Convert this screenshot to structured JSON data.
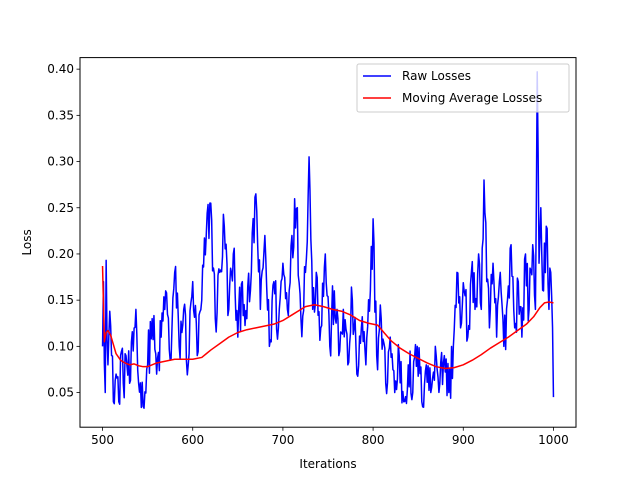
{
  "chart_data": {
    "type": "line",
    "title": "",
    "xlabel": "Iterations",
    "ylabel": "Loss",
    "xlim": [
      475,
      1025
    ],
    "ylim": [
      0.0125,
      0.4125
    ],
    "xticks": [
      500,
      600,
      700,
      800,
      900,
      1000
    ],
    "yticks": [
      0.05,
      0.1,
      0.15,
      0.2,
      0.25,
      0.3,
      0.35,
      0.4
    ],
    "xtick_labels": [
      "500",
      "600",
      "700",
      "800",
      "900",
      "1000"
    ],
    "ytick_labels": [
      "0.05",
      "0.10",
      "0.15",
      "0.20",
      "0.25",
      "0.30",
      "0.35",
      "0.40"
    ],
    "grid": false,
    "legend_position": "upper-right",
    "series": [
      {
        "name": "Raw Losses",
        "color": "#0000ff",
        "style": "solid",
        "raw_seed": 12345,
        "anchors": [
          [
            500,
            0.1
          ],
          [
            501,
            0.17
          ],
          [
            503,
            0.05
          ],
          [
            504,
            0.193
          ],
          [
            506,
            0.08
          ],
          [
            508,
            0.138
          ],
          [
            510,
            0.09
          ],
          [
            512,
            0.04
          ],
          [
            515,
            0.07
          ],
          [
            518,
            0.04
          ],
          [
            520,
            0.09
          ],
          [
            523,
            0.06
          ],
          [
            526,
            0.09
          ],
          [
            530,
            0.06
          ],
          [
            534,
            0.095
          ],
          [
            537,
            0.14
          ],
          [
            540,
            0.06
          ],
          [
            545,
            0.035
          ],
          [
            550,
            0.08
          ],
          [
            555,
            0.13
          ],
          [
            560,
            0.07
          ],
          [
            565,
            0.11
          ],
          [
            570,
            0.16
          ],
          [
            575,
            0.085
          ],
          [
            580,
            0.18
          ],
          [
            585,
            0.1
          ],
          [
            590,
            0.14
          ],
          [
            595,
            0.08
          ],
          [
            600,
            0.17
          ],
          [
            605,
            0.09
          ],
          [
            610,
            0.15
          ],
          [
            615,
            0.22
          ],
          [
            620,
            0.255
          ],
          [
            625,
            0.13
          ],
          [
            630,
            0.18
          ],
          [
            635,
            0.23
          ],
          [
            640,
            0.14
          ],
          [
            645,
            0.2
          ],
          [
            650,
            0.11
          ],
          [
            655,
            0.17
          ],
          [
            660,
            0.13
          ],
          [
            665,
            0.18
          ],
          [
            670,
            0.265
          ],
          [
            675,
            0.14
          ],
          [
            680,
            0.22
          ],
          [
            685,
            0.1
          ],
          [
            690,
            0.17
          ],
          [
            695,
            0.12
          ],
          [
            700,
            0.19
          ],
          [
            705,
            0.14
          ],
          [
            710,
            0.22
          ],
          [
            715,
            0.249
          ],
          [
            720,
            0.13
          ],
          [
            725,
            0.18
          ],
          [
            729,
            0.305
          ],
          [
            733,
            0.14
          ],
          [
            737,
            0.18
          ],
          [
            742,
            0.12
          ],
          [
            747,
            0.2
          ],
          [
            752,
            0.1
          ],
          [
            757,
            0.16
          ],
          [
            762,
            0.09
          ],
          [
            767,
            0.14
          ],
          [
            772,
            0.08
          ],
          [
            777,
            0.15
          ],
          [
            782,
            0.07
          ],
          [
            787,
            0.12
          ],
          [
            792,
            0.08
          ],
          [
            796,
            0.138
          ],
          [
            800,
            0.238
          ],
          [
            804,
            0.09
          ],
          [
            809,
            0.13
          ],
          [
            814,
            0.06
          ],
          [
            819,
            0.11
          ],
          [
            824,
            0.05
          ],
          [
            829,
            0.09
          ],
          [
            834,
            0.04
          ],
          [
            839,
            0.08
          ],
          [
            844,
            0.05
          ],
          [
            849,
            0.1
          ],
          [
            854,
            0.04
          ],
          [
            859,
            0.08
          ],
          [
            864,
            0.05
          ],
          [
            869,
            0.1
          ],
          [
            874,
            0.06
          ],
          [
            879,
            0.09
          ],
          [
            884,
            0.05
          ],
          [
            889,
            0.1
          ],
          [
            893,
            0.18
          ],
          [
            897,
            0.12
          ],
          [
            901,
            0.16
          ],
          [
            905,
            0.11
          ],
          [
            909,
            0.18
          ],
          [
            913,
            0.14
          ],
          [
            917,
            0.2
          ],
          [
            920,
            0.14
          ],
          [
            923,
            0.28
          ],
          [
            926,
            0.17
          ],
          [
            929,
            0.12
          ],
          [
            933,
            0.19
          ],
          [
            937,
            0.11
          ],
          [
            941,
            0.18
          ],
          [
            945,
            0.1
          ],
          [
            949,
            0.15
          ],
          [
            953,
            0.21
          ],
          [
            957,
            0.12
          ],
          [
            961,
            0.17
          ],
          [
            965,
            0.11
          ],
          [
            969,
            0.2
          ],
          [
            973,
            0.14
          ],
          [
            977,
            0.21
          ],
          [
            980,
            0.14
          ],
          [
            982,
            0.397
          ],
          [
            984,
            0.19
          ],
          [
            986,
            0.25
          ],
          [
            989,
            0.16
          ],
          [
            992,
            0.23
          ],
          [
            995,
            0.14
          ],
          [
            997,
            0.18
          ],
          [
            999,
            0.12
          ],
          [
            1000,
            0.045
          ]
        ]
      },
      {
        "name": "Moving Average Losses",
        "color": "#ff0000",
        "style": "solid",
        "anchors": [
          [
            500,
            0.187
          ],
          [
            502,
            0.105
          ],
          [
            504,
            0.115
          ],
          [
            506,
            0.117
          ],
          [
            509,
            0.112
          ],
          [
            512,
            0.102
          ],
          [
            515,
            0.092
          ],
          [
            520,
            0.085
          ],
          [
            525,
            0.082
          ],
          [
            530,
            0.08
          ],
          [
            535,
            0.081
          ],
          [
            540,
            0.079
          ],
          [
            545,
            0.078
          ],
          [
            550,
            0.078
          ],
          [
            555,
            0.08
          ],
          [
            560,
            0.082
          ],
          [
            570,
            0.084
          ],
          [
            580,
            0.086
          ],
          [
            590,
            0.086
          ],
          [
            600,
            0.086
          ],
          [
            610,
            0.088
          ],
          [
            615,
            0.092
          ],
          [
            620,
            0.096
          ],
          [
            630,
            0.103
          ],
          [
            640,
            0.11
          ],
          [
            650,
            0.115
          ],
          [
            660,
            0.118
          ],
          [
            670,
            0.12
          ],
          [
            680,
            0.122
          ],
          [
            690,
            0.124
          ],
          [
            700,
            0.128
          ],
          [
            710,
            0.134
          ],
          [
            720,
            0.14
          ],
          [
            725,
            0.143
          ],
          [
            735,
            0.145
          ],
          [
            745,
            0.143
          ],
          [
            755,
            0.14
          ],
          [
            765,
            0.138
          ],
          [
            775,
            0.134
          ],
          [
            785,
            0.128
          ],
          [
            795,
            0.125
          ],
          [
            805,
            0.123
          ],
          [
            812,
            0.115
          ],
          [
            820,
            0.106
          ],
          [
            830,
            0.098
          ],
          [
            840,
            0.092
          ],
          [
            850,
            0.087
          ],
          [
            860,
            0.082
          ],
          [
            870,
            0.078
          ],
          [
            880,
            0.076
          ],
          [
            890,
            0.077
          ],
          [
            900,
            0.08
          ],
          [
            910,
            0.085
          ],
          [
            920,
            0.091
          ],
          [
            930,
            0.098
          ],
          [
            940,
            0.104
          ],
          [
            950,
            0.11
          ],
          [
            960,
            0.117
          ],
          [
            970,
            0.124
          ],
          [
            978,
            0.132
          ],
          [
            985,
            0.142
          ],
          [
            990,
            0.147
          ],
          [
            995,
            0.148
          ],
          [
            1000,
            0.147
          ]
        ]
      }
    ]
  }
}
